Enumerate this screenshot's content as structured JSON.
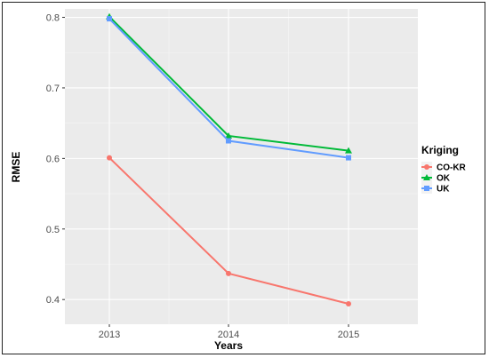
{
  "chart_data": {
    "type": "line",
    "title": "",
    "xlabel": "Years",
    "ylabel": "RMSE",
    "x": [
      "2013",
      "2014",
      "2015"
    ],
    "ylim": [
      0.365,
      0.812
    ],
    "y_ticks": [
      "0.4",
      "0.5",
      "0.6",
      "0.7",
      "0.8"
    ],
    "grid": true,
    "legend": {
      "title": "Kriging",
      "position": "right"
    },
    "series": [
      {
        "name": "CO-KR",
        "values": [
          0.601,
          0.437,
          0.394
        ],
        "color": "#F8766D",
        "marker": "circle"
      },
      {
        "name": "OK",
        "values": [
          0.801,
          0.632,
          0.611
        ],
        "color": "#00BA38",
        "marker": "triangle"
      },
      {
        "name": "UK",
        "values": [
          0.798,
          0.625,
          0.601
        ],
        "color": "#619CFF",
        "marker": "square"
      }
    ]
  }
}
